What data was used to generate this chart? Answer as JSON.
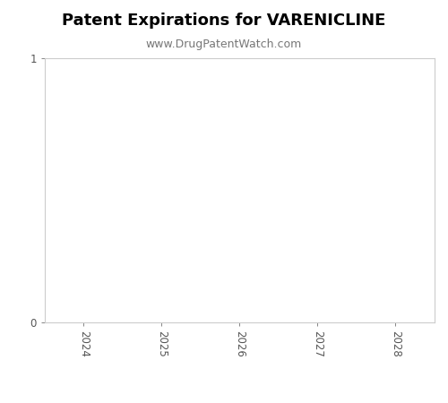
{
  "title": "Patent Expirations for VARENICLINE",
  "subtitle": "www.DrugPatentWatch.com",
  "title_fontsize": 13,
  "subtitle_fontsize": 9,
  "title_fontweight": "bold",
  "xlim": [
    2023.5,
    2028.5
  ],
  "ylim": [
    0,
    1
  ],
  "xticks": [
    2024,
    2025,
    2026,
    2027,
    2028
  ],
  "yticks": [
    0,
    1
  ],
  "background_color": "#ffffff",
  "axes_facecolor": "#ffffff",
  "spine_color": "#cccccc",
  "tick_color": "#555555",
  "title_color": "#000000",
  "subtitle_color": "#777777",
  "rotate_xticks": 270,
  "tick_labelsize": 8.5
}
